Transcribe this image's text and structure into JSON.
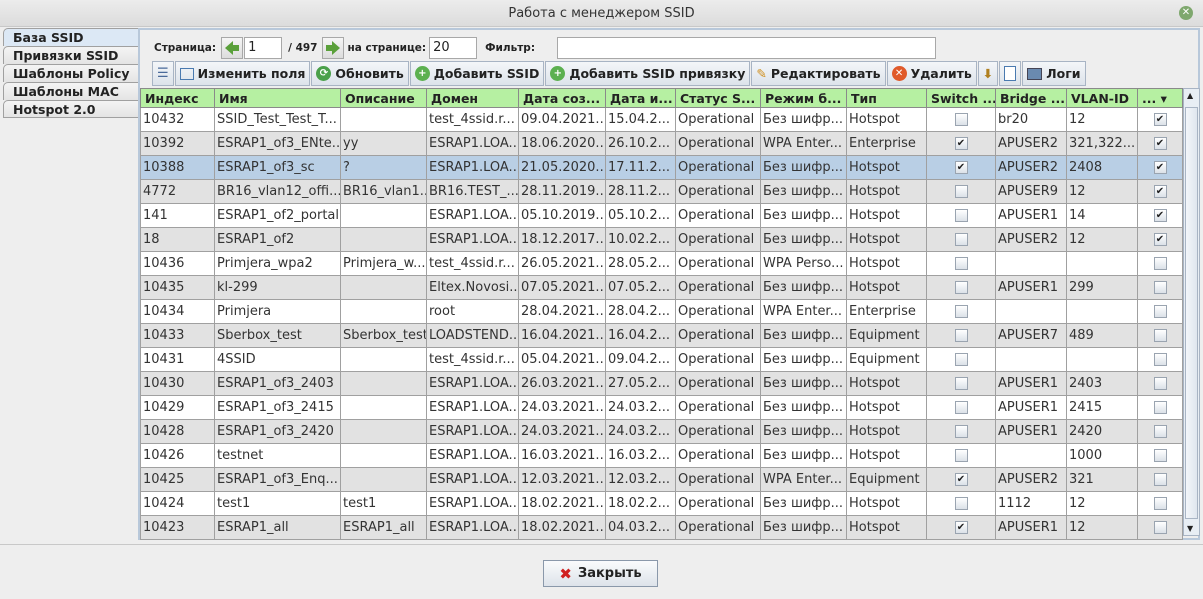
{
  "window": {
    "title": "Работа с менеджером SSID"
  },
  "tabs": [
    "База SSID",
    "Привязки SSID",
    "Шаблоны Policy",
    "Шаблоны MAC",
    "Hotspot 2.0"
  ],
  "pager": {
    "page_label": "Страница:",
    "page": "1",
    "total": "/ 497",
    "per_page_label": "на странице:",
    "per_page": "20",
    "filter_label": "Фильтр:",
    "filter": ""
  },
  "toolbar": {
    "edit_fields": "Изменить поля",
    "refresh": "Обновить",
    "add_ssid": "Добавить SSID",
    "add_binding": "Добавить SSID привязку",
    "edit": "Редактировать",
    "delete": "Удалить",
    "logs": "Логи"
  },
  "columns": [
    "Индекс",
    "Имя",
    "Описание",
    "Домен",
    "Дата соз...",
    "Дата и...",
    "Статус S...",
    "Режим б...",
    "Тип",
    "Switch ...",
    "Bridge ...",
    "VLAN-ID",
    "... ▾"
  ],
  "rows": [
    [
      "10432",
      "SSID_Test_Test_T...",
      "",
      "test_4ssid.r...",
      "09.04.2021...",
      "15.04.2...",
      "Operational",
      "Без шифр...",
      "Hotspot",
      false,
      "br20",
      "12",
      true
    ],
    [
      "10392",
      "ESRAP1_of3_ENte...",
      "yy",
      "ESRAP1.LOA...",
      "18.06.2020...",
      "26.10.2...",
      "Operational",
      "WPA Enter...",
      "Enterprise",
      true,
      "APUSER2",
      "321,322...",
      true
    ],
    [
      "10388",
      "ESRAP1_of3_sc",
      "?",
      "ESRAP1.LOA...",
      "21.05.2020...",
      "17.11.2...",
      "Operational",
      "Без шифр...",
      "Hotspot",
      true,
      "APUSER2",
      "2408",
      true
    ],
    [
      "4772",
      "BR16_vlan12_offi...",
      "BR16_vlan1...",
      "BR16.TEST_...",
      "28.11.2019...",
      "28.11.2...",
      "Operational",
      "Без шифр...",
      "Hotspot",
      false,
      "APUSER9",
      "12",
      true
    ],
    [
      "141",
      "ESRAP1_of2_portal",
      "",
      "ESRAP1.LOA...",
      "05.10.2019...",
      "05.10.2...",
      "Operational",
      "Без шифр...",
      "Hotspot",
      false,
      "APUSER1",
      "14",
      true
    ],
    [
      "18",
      "ESRAP1_of2",
      "",
      "ESRAP1.LOA...",
      "18.12.2017...",
      "10.02.2...",
      "Operational",
      "Без шифр...",
      "Hotspot",
      false,
      "APUSER2",
      "12",
      true
    ],
    [
      "10436",
      "Primjera_wpa2",
      "Primjera_w...",
      "test_4ssid.r...",
      "26.05.2021...",
      "28.05.2...",
      "Operational",
      "WPA Perso...",
      "Hotspot",
      false,
      "",
      "",
      false
    ],
    [
      "10435",
      "kl-299",
      "",
      "Eltex.Novosi...",
      "07.05.2021...",
      "07.05.2...",
      "Operational",
      "Без шифр...",
      "Hotspot",
      false,
      "APUSER1",
      "299",
      false
    ],
    [
      "10434",
      "Primjera",
      "",
      "root",
      "28.04.2021...",
      "28.04.2...",
      "Operational",
      "WPA Enter...",
      "Enterprise",
      false,
      "",
      "",
      false
    ],
    [
      "10433",
      "Sberbox_test",
      "Sberbox_test",
      "LOADSTEND....",
      "16.04.2021...",
      "16.04.2...",
      "Operational",
      "Без шифр...",
      "Equipment",
      false,
      "APUSER7",
      "489",
      false
    ],
    [
      "10431",
      "4SSID",
      "",
      "test_4ssid.r...",
      "05.04.2021...",
      "09.04.2...",
      "Operational",
      "Без шифр...",
      "Equipment",
      false,
      "",
      "",
      false
    ],
    [
      "10430",
      "ESRAP1_of3_2403",
      "",
      "ESRAP1.LOA...",
      "26.03.2021...",
      "27.05.2...",
      "Operational",
      "Без шифр...",
      "Hotspot",
      false,
      "APUSER1",
      "2403",
      false
    ],
    [
      "10429",
      "ESRAP1_of3_2415",
      "",
      "ESRAP1.LOA...",
      "24.03.2021...",
      "24.03.2...",
      "Operational",
      "Без шифр...",
      "Hotspot",
      false,
      "APUSER1",
      "2415",
      false
    ],
    [
      "10428",
      "ESRAP1_of3_2420",
      "",
      "ESRAP1.LOA...",
      "24.03.2021...",
      "24.03.2...",
      "Operational",
      "Без шифр...",
      "Hotspot",
      false,
      "APUSER1",
      "2420",
      false
    ],
    [
      "10426",
      "testnet",
      "",
      "ESRAP1.LOA...",
      "16.03.2021...",
      "16.03.2...",
      "Operational",
      "Без шифр...",
      "Hotspot",
      false,
      "",
      "1000",
      false
    ],
    [
      "10425",
      "ESRAP1_of3_Enq...",
      "",
      "ESRAP1.LOA...",
      "12.03.2021...",
      "12.03.2...",
      "Operational",
      "WPA Enter...",
      "Equipment",
      true,
      "APUSER2",
      "321",
      false
    ],
    [
      "10424",
      "test1",
      "test1",
      "ESRAP1.LOA...",
      "18.02.2021...",
      "18.02.2...",
      "Operational",
      "Без шифр...",
      "Hotspot",
      false,
      "1112",
      "12",
      false
    ],
    [
      "10423",
      "ESRAP1_all",
      "ESRAP1_all",
      "ESRAP1.LOA...",
      "18.02.2021...",
      "04.03.2...",
      "Operational",
      "Без шифр...",
      "Hotspot",
      true,
      "APUSER1",
      "12",
      false
    ]
  ],
  "selected_row": 2,
  "footer": {
    "close": "Закрыть"
  }
}
